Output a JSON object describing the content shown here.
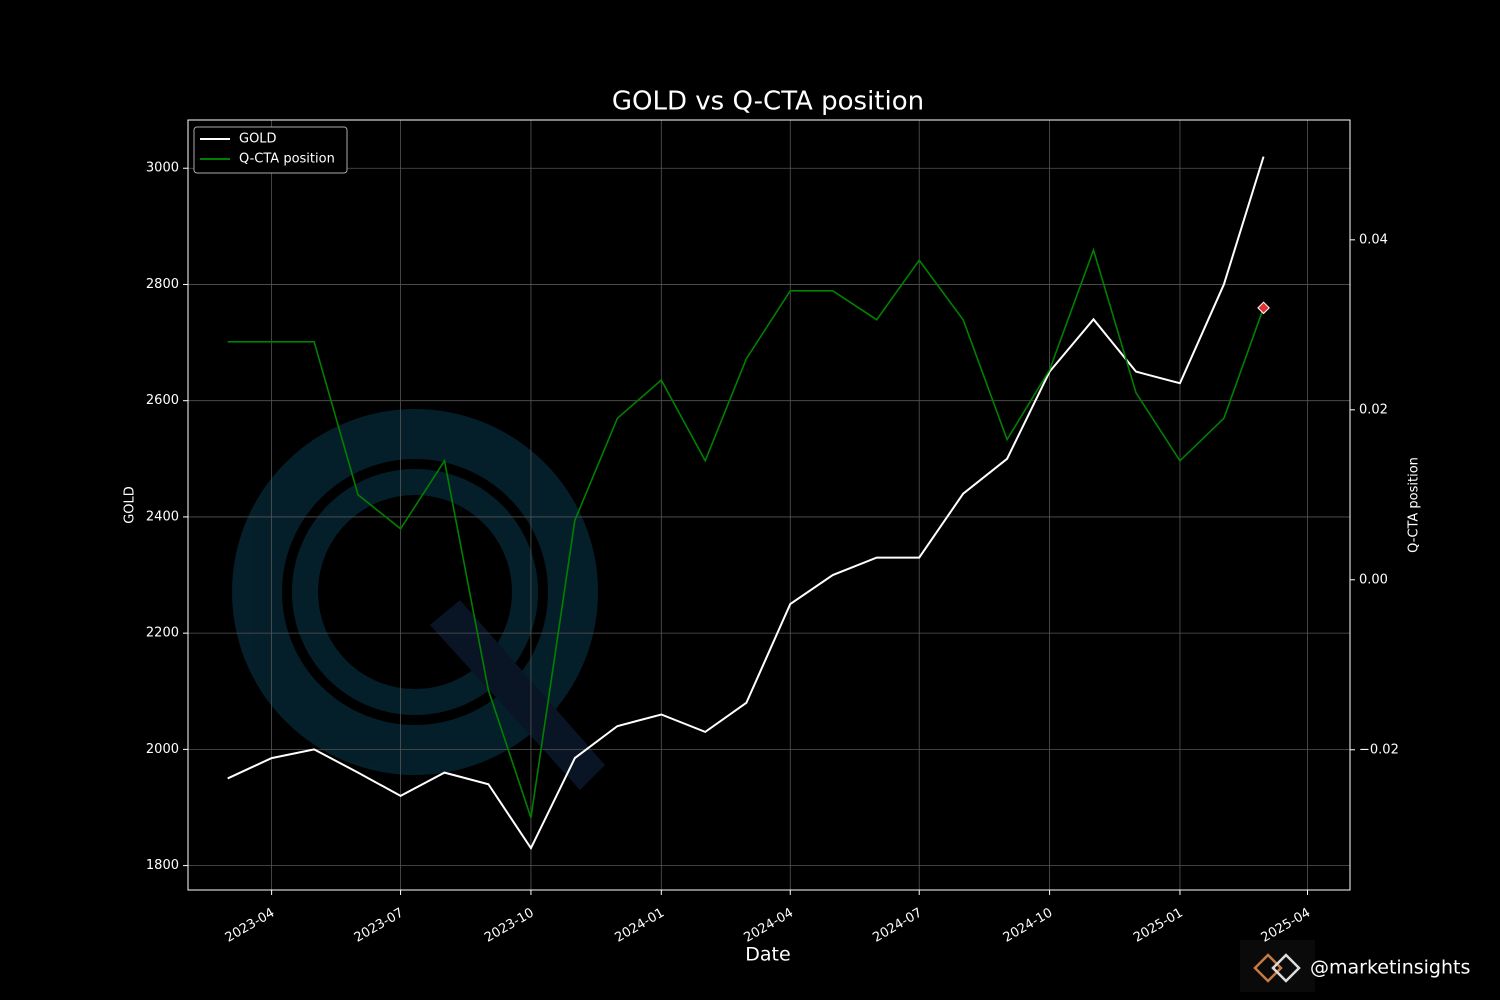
{
  "chart_data": {
    "type": "line",
    "title": "GOLD vs Q-CTA position",
    "xlabel": "Date",
    "ylabel": "GOLD",
    "y2label": "Q-CTA position",
    "x": [
      "2023-03",
      "2023-04",
      "2023-05",
      "2023-06",
      "2023-07",
      "2023-08",
      "2023-09",
      "2023-10",
      "2023-11",
      "2023-12",
      "2024-01",
      "2024-02",
      "2024-03",
      "2024-04",
      "2024-05",
      "2024-06",
      "2024-07",
      "2024-08",
      "2024-09",
      "2024-10",
      "2024-11",
      "2024-12",
      "2025-01",
      "2025-02",
      "2025-03"
    ],
    "series": [
      {
        "name": "GOLD",
        "color": "#ffffff",
        "axis": "y",
        "values": [
          1950,
          1985,
          2000,
          1960,
          1920,
          1960,
          1940,
          1830,
          1985,
          2040,
          2060,
          2030,
          2080,
          2250,
          2300,
          2330,
          2330,
          2440,
          2500,
          2650,
          2740,
          2650,
          2630,
          2800,
          3020
        ]
      },
      {
        "name": "Q-CTA position",
        "color": "#008000",
        "axis": "y2",
        "values": [
          0.028,
          0.028,
          0.028,
          0.01,
          0.006,
          0.014,
          -0.013,
          -0.028,
          0.007,
          0.019,
          0.0235,
          0.014,
          0.026,
          0.034,
          0.034,
          0.0306,
          0.0376,
          0.0306,
          0.0165,
          0.0247,
          0.0388,
          0.022,
          0.014,
          0.019,
          0.032
        ]
      }
    ],
    "xlim": [
      "2023-02",
      "2025-05"
    ],
    "xticks": [
      "2023-04",
      "2023-07",
      "2023-10",
      "2024-01",
      "2024-04",
      "2024-07",
      "2024-10",
      "2025-01",
      "2025-04"
    ],
    "ylim": [
      1758,
      3083
    ],
    "yticks": [
      1800,
      2000,
      2200,
      2400,
      2600,
      2800,
      3000
    ],
    "y2lim": [
      -0.0365,
      0.0541
    ],
    "y2ticks": [
      {
        "value": -0.02,
        "label": "−0.02"
      },
      {
        "value": 0,
        "label": "0.00"
      },
      {
        "value": 0.02,
        "label": "0.02"
      },
      {
        "value": 0.04,
        "label": "0.04"
      }
    ],
    "grid": true,
    "legend": "upper left",
    "marker_color": "#e03030",
    "brand": "@marketinsights"
  }
}
